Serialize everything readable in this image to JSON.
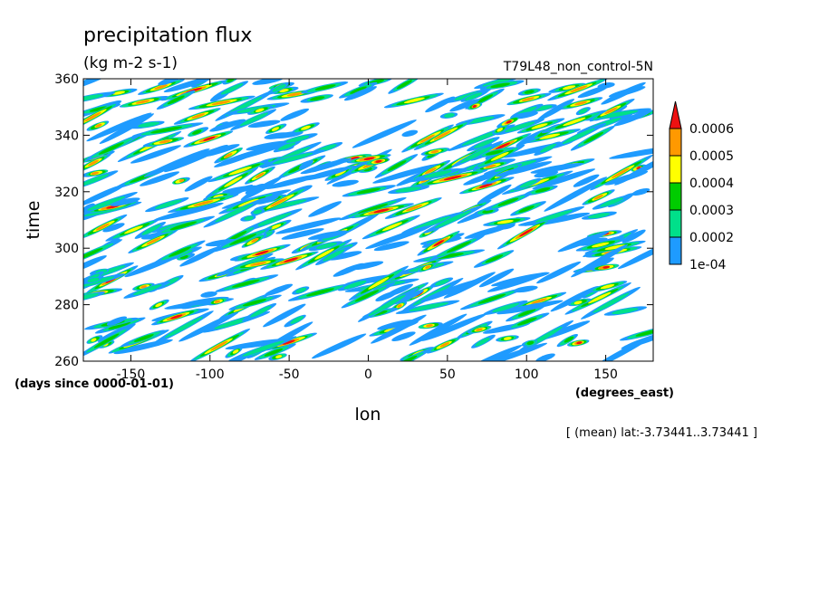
{
  "title": "precipitation flux",
  "units": "(kg m-2 s-1)",
  "run_label": "T79L48_non_control-5N",
  "footer_note": "[ (mean) lat:-3.73441..3.73441 ]",
  "colors": {
    "level1": "#1e9bff",
    "level2": "#00e08a",
    "level3": "#00cc00",
    "level4": "#ffff00",
    "level5": "#ff9900",
    "level6": "#ee1111"
  },
  "chart_data": {
    "type": "heatmap",
    "xlabel": "lon",
    "xunits": "(degrees_east)",
    "ylabel": "time",
    "yunits": "(days since 0000-01-01)",
    "xlim": [
      -180,
      180
    ],
    "ylim": [
      260,
      360
    ],
    "x_ticks": [
      {
        "value": -150,
        "label": "-150"
      },
      {
        "value": -100,
        "label": "-100"
      },
      {
        "value": -50,
        "label": "-50"
      },
      {
        "value": 0,
        "label": "0"
      },
      {
        "value": 50,
        "label": "50"
      },
      {
        "value": 100,
        "label": "100"
      },
      {
        "value": 150,
        "label": "150"
      }
    ],
    "y_ticks": [
      {
        "value": 260,
        "label": "260"
      },
      {
        "value": 280,
        "label": "280"
      },
      {
        "value": 300,
        "label": "300"
      },
      {
        "value": 320,
        "label": "320"
      },
      {
        "value": 340,
        "label": "340"
      },
      {
        "value": 360,
        "label": "360"
      }
    ],
    "colorbar": {
      "levels": [
        "1e-04",
        "0.0002",
        "0.0003",
        "0.0004",
        "0.0005",
        "0.0006"
      ]
    },
    "grid": false
  }
}
